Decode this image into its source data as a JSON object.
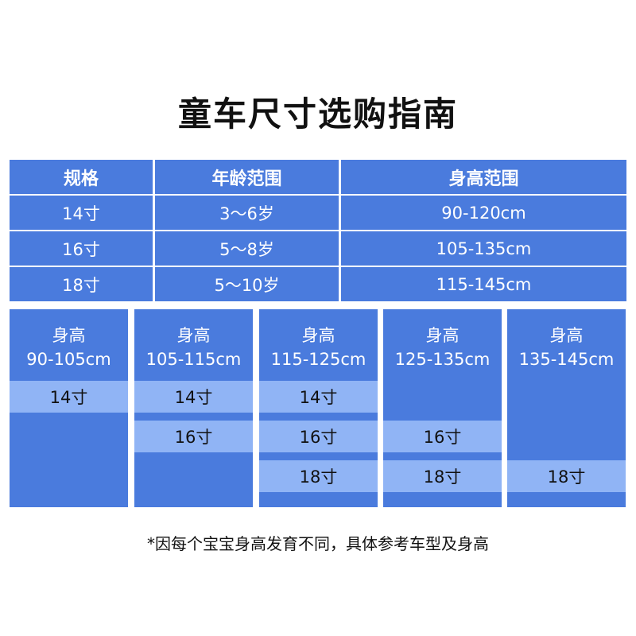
{
  "title": "童车尺寸选购指南",
  "table": {
    "headers": [
      "规格",
      "年龄范围",
      "身高范围"
    ],
    "rows": [
      [
        "14寸",
        "3～6岁",
        "90-120cm"
      ],
      [
        "16寸",
        "5～8岁",
        "105-135cm"
      ],
      [
        "18寸",
        "5～10岁",
        "115-145cm"
      ]
    ]
  },
  "cards": [
    {
      "label": "身高",
      "range": "90-105cm",
      "sizes": [
        "14寸",
        "",
        ""
      ]
    },
    {
      "label": "身高",
      "range": "105-115cm",
      "sizes": [
        "14寸",
        "16寸",
        ""
      ]
    },
    {
      "label": "身高",
      "range": "115-125cm",
      "sizes": [
        "14寸",
        "16寸",
        "18寸"
      ]
    },
    {
      "label": "身高",
      "range": "125-135cm",
      "sizes": [
        "",
        "16寸",
        "18寸"
      ]
    },
    {
      "label": "身高",
      "range": "135-145cm",
      "sizes": [
        "",
        "",
        "18寸"
      ]
    }
  ],
  "footnote": "*因每个宝宝身高发育不同，具体参考车型及身高",
  "colors": {
    "primary": "#4a7bdd",
    "highlight": "#90b4f5"
  }
}
